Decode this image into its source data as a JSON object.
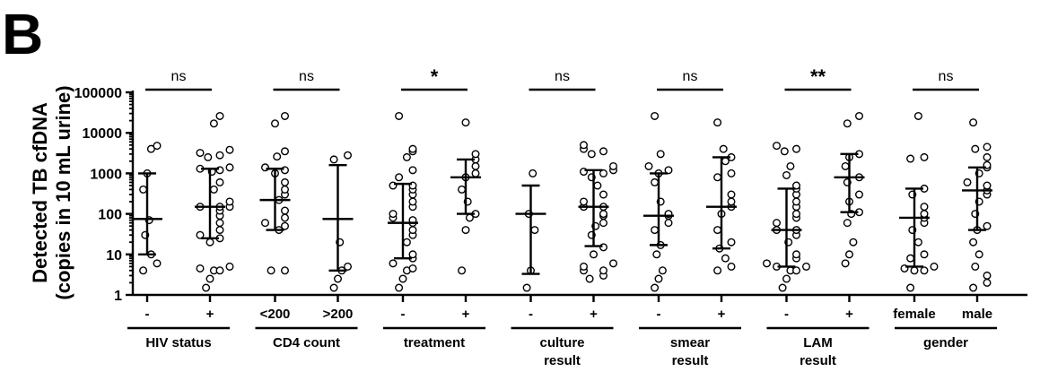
{
  "panel_label": "B",
  "chart_data": {
    "type": "scatter",
    "scale": "log",
    "ylim": [
      1,
      100000
    ],
    "yticks": [
      {
        "value": 100000,
        "label": "100000"
      },
      {
        "value": 10000,
        "label": "10000"
      },
      {
        "value": 1000,
        "label": "1000"
      },
      {
        "value": 100,
        "label": "100"
      },
      {
        "value": 10,
        "label": "10"
      },
      {
        "value": 1,
        "label": "1"
      }
    ],
    "ylabel": [
      "Detected TB cfDNA",
      "(copies in 10 mL urine)"
    ],
    "groups": [
      {
        "label": [
          "HIV status"
        ],
        "significance": "ns",
        "series": [
          {
            "category": "-",
            "median": 75,
            "q1": 10,
            "q3": 1000,
            "values": [
              4,
              6,
              10,
              30,
              70,
              400,
              1000,
              4000,
              4800
            ]
          },
          {
            "category": "+",
            "median": 150,
            "q1": 25,
            "q3": 1300,
            "values": [
              1.5,
              2.5,
              4,
              4,
              4.5,
              5,
              20,
              25,
              30,
              40,
              60,
              90,
              120,
              150,
              150,
              150,
              200,
              400,
              600,
              1100,
              1200,
              1300,
              1400,
              2500,
              2800,
              3200,
              3800,
              17000,
              26000
            ]
          }
        ]
      },
      {
        "label": [
          "CD4 count"
        ],
        "significance": "ns",
        "series": [
          {
            "category": "<200",
            "median": 220,
            "q1": 40,
            "q3": 1300,
            "values": [
              4,
              4,
              40,
              50,
              60,
              80,
              120,
              220,
              300,
              400,
              600,
              1000,
              1200,
              1400,
              2600,
              3500,
              17000,
              26000
            ]
          },
          {
            "category": ">200",
            "median": 75,
            "q1": 4,
            "q3": 1600,
            "values": [
              1.5,
              2.5,
              4,
              5,
              20,
              2200,
              2800
            ]
          }
        ]
      },
      {
        "label": [
          "treatment"
        ],
        "significance": "*",
        "series": [
          {
            "category": "-",
            "median": 60,
            "q1": 8,
            "q3": 550,
            "values": [
              1.5,
              2.5,
              4,
              4.5,
              6,
              8,
              10,
              20,
              30,
              40,
              60,
              70,
              80,
              100,
              150,
              200,
              300,
              400,
              500,
              500,
              800,
              1200,
              2500,
              3500,
              4000,
              26000
            ]
          },
          {
            "category": "+",
            "median": 800,
            "q1": 100,
            "q3": 2200,
            "values": [
              4,
              40,
              80,
              100,
              200,
              400,
              800,
              1000,
              1500,
              2200,
              3000,
              18000
            ]
          }
        ]
      },
      {
        "label": [
          "culture",
          "result"
        ],
        "significance": "ns",
        "series": [
          {
            "category": "-",
            "median": 100,
            "q1": 3.3,
            "q3": 500,
            "values": [
              1.5,
              4,
              40,
              100,
              1000
            ]
          },
          {
            "category": "+",
            "median": 150,
            "q1": 16,
            "q3": 1200,
            "values": [
              2.5,
              3,
              4,
              4,
              5,
              6,
              10,
              15,
              30,
              50,
              60,
              90,
              100,
              150,
              150,
              200,
              300,
              500,
              800,
              1000,
              1100,
              1200,
              1500,
              3000,
              3500,
              4000,
              5000
            ]
          }
        ]
      },
      {
        "label": [
          "smear",
          "result"
        ],
        "significance": "ns",
        "series": [
          {
            "category": "-",
            "median": 90,
            "q1": 17,
            "q3": 1000,
            "values": [
              1.5,
              2.5,
              4,
              10,
              17,
              40,
              60,
              90,
              100,
              200,
              600,
              1000,
              1200,
              1500,
              3000,
              26000
            ]
          },
          {
            "category": "+",
            "median": 150,
            "q1": 14,
            "q3": 2500,
            "values": [
              4,
              5,
              8,
              14,
              20,
              40,
              100,
              150,
              200,
              300,
              800,
              1000,
              2000,
              2500,
              4000,
              18000
            ]
          }
        ]
      },
      {
        "label": [
          "LAM",
          "result"
        ],
        "significance": "**",
        "series": [
          {
            "category": "-",
            "median": 40,
            "q1": 5,
            "q3": 420,
            "values": [
              1.5,
              2.5,
              4,
              4,
              5,
              5,
              6,
              8,
              10,
              20,
              30,
              40,
              40,
              60,
              80,
              100,
              150,
              200,
              300,
              420,
              500,
              900,
              1500,
              3500,
              4000,
              4800
            ]
          },
          {
            "category": "+",
            "median": 800,
            "q1": 110,
            "q3": 3000,
            "values": [
              6,
              10,
              20,
              60,
              100,
              110,
              200,
              300,
              600,
              800,
              1500,
              2500,
              3000,
              17000,
              26000
            ]
          }
        ]
      },
      {
        "label": [
          "gender"
        ],
        "significance": "ns",
        "series": [
          {
            "category": "female",
            "median": 80,
            "q1": 5,
            "q3": 420,
            "values": [
              1.5,
              4,
              4,
              4.5,
              5,
              8,
              10,
              20,
              40,
              60,
              80,
              100,
              150,
              300,
              420,
              2300,
              2500,
              26000
            ]
          },
          {
            "category": "male",
            "median": 380,
            "q1": 40,
            "q3": 1400,
            "values": [
              1.5,
              2,
              3,
              5,
              10,
              20,
              40,
              50,
              100,
              200,
              300,
              380,
              500,
              600,
              1000,
              1400,
              1600,
              2500,
              4000,
              4500,
              18000
            ]
          }
        ]
      }
    ]
  }
}
